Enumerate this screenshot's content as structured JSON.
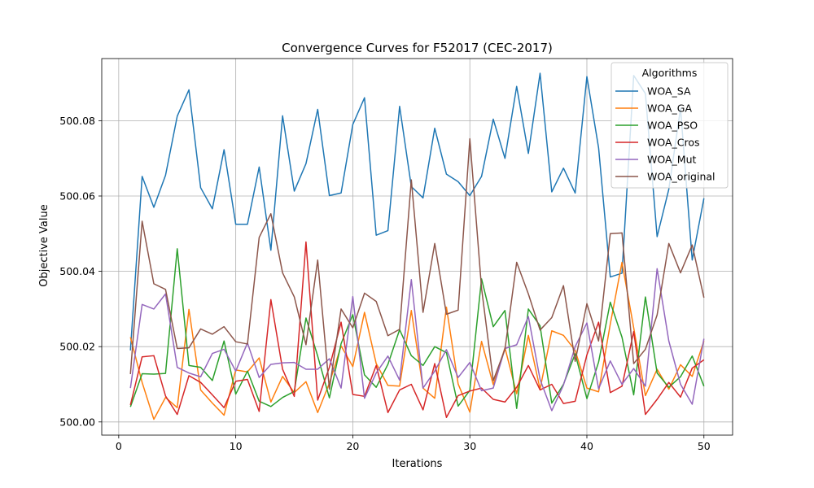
{
  "chart_data": {
    "type": "line",
    "title": "Convergence Curves for F52017 (CEC-2017)",
    "xlabel": "Iterations",
    "ylabel": "Objective Value",
    "xlim": [
      -1.45,
      52.45
    ],
    "ylim": [
      499.9965,
      500.0965
    ],
    "xticks": [
      0,
      10,
      20,
      30,
      40,
      50
    ],
    "yticks": [
      500.0,
      500.02,
      500.04,
      500.06,
      500.08
    ],
    "ytick_labels": [
      "500.00",
      "500.02",
      "500.04",
      "500.06",
      "500.08"
    ],
    "grid": true,
    "legend": {
      "title": "Algorithms",
      "position": "top-right"
    },
    "x": [
      1,
      2,
      3,
      4,
      5,
      6,
      7,
      8,
      9,
      10,
      11,
      12,
      13,
      14,
      15,
      16,
      17,
      18,
      19,
      20,
      21,
      22,
      23,
      24,
      25,
      26,
      27,
      28,
      29,
      30,
      31,
      32,
      33,
      34,
      35,
      36,
      37,
      38,
      39,
      40,
      41,
      42,
      43,
      44,
      45,
      46,
      47,
      48,
      49,
      50
    ],
    "series": [
      {
        "name": "WOA_SA",
        "color": "#1f77b4",
        "values": [
          500.019,
          500.0652,
          500.057,
          500.0655,
          500.0812,
          500.0882,
          500.0622,
          500.0566,
          500.0723,
          500.0525,
          500.0525,
          500.0677,
          500.0456,
          500.0813,
          500.0613,
          500.0686,
          500.083,
          500.0601,
          500.0608,
          500.079,
          500.0861,
          500.0496,
          500.0508,
          500.0838,
          500.0625,
          500.0595,
          500.078,
          500.0658,
          500.0638,
          500.0601,
          500.0652,
          500.0804,
          500.07,
          500.0891,
          500.0713,
          500.0926,
          500.0611,
          500.0674,
          500.0608,
          500.0917,
          500.0728,
          500.0385,
          500.0395,
          500.092,
          500.0872,
          500.0492,
          500.0618,
          500.0833,
          500.043,
          500.0594
        ]
      },
      {
        "name": "WOA_GA",
        "color": "#ff7f0e",
        "values": [
          500.0225,
          500.0105,
          500.0007,
          500.0065,
          500.0038,
          500.0299,
          500.0085,
          500.005,
          500.0018,
          500.0138,
          500.0133,
          500.017,
          500.0053,
          500.0121,
          500.0078,
          500.0107,
          500.0025,
          500.0103,
          500.0202,
          500.0147,
          500.0291,
          500.0155,
          500.0097,
          500.0095,
          500.0296,
          500.009,
          500.0063,
          500.0305,
          500.0101,
          500.0026,
          500.0214,
          500.0099,
          500.0197,
          500.0075,
          500.023,
          500.0087,
          500.0242,
          500.023,
          500.019,
          500.009,
          500.008,
          500.026,
          500.0424,
          500.025,
          500.007,
          500.014,
          500.0087,
          500.0152,
          500.0121,
          500.0215
        ]
      },
      {
        "name": "WOA_PSO",
        "color": "#2ca02c",
        "values": [
          500.004,
          500.0128,
          500.0127,
          500.0129,
          500.046,
          500.015,
          500.0145,
          500.011,
          500.0215,
          500.0074,
          500.0135,
          500.0055,
          500.0041,
          500.0065,
          500.0081,
          500.0276,
          500.0175,
          500.0064,
          500.0208,
          500.0285,
          500.0125,
          500.0092,
          500.0153,
          500.0245,
          500.0176,
          500.015,
          500.02,
          500.0184,
          500.0042,
          500.0084,
          500.038,
          500.0253,
          500.0296,
          500.0036,
          500.03,
          500.0255,
          500.005,
          500.01,
          500.0181,
          500.0062,
          500.0159,
          500.0318,
          500.0225,
          500.0072,
          500.0332,
          500.013,
          500.0092,
          500.012,
          500.0175,
          500.0095
        ]
      },
      {
        "name": "WOA_Cros",
        "color": "#d62728",
        "values": [
          500.0045,
          500.0173,
          500.0176,
          500.0069,
          500.002,
          500.0123,
          500.0105,
          500.0072,
          500.0038,
          500.0108,
          500.0113,
          500.0028,
          500.0325,
          500.014,
          500.0068,
          500.0478,
          500.0058,
          500.0145,
          500.0265,
          500.0073,
          500.0068,
          500.015,
          500.0025,
          500.0085,
          500.01,
          500.0032,
          500.0155,
          500.0012,
          500.007,
          500.0082,
          500.009,
          500.006,
          500.0053,
          500.0092,
          500.015,
          500.0085,
          500.01,
          500.0049,
          500.0055,
          500.0178,
          500.0265,
          500.0078,
          500.0095,
          500.024,
          500.002,
          500.006,
          500.0105,
          500.0066,
          500.0143,
          500.0165
        ]
      },
      {
        "name": "WOA_Mut",
        "color": "#9467bd",
        "values": [
          500.009,
          500.0312,
          500.03,
          500.034,
          500.0145,
          500.013,
          500.012,
          500.0182,
          500.0193,
          500.0135,
          500.021,
          500.0118,
          500.0153,
          500.0157,
          500.0158,
          500.014,
          500.014,
          500.0168,
          500.009,
          500.0333,
          500.0063,
          500.013,
          500.0175,
          500.0111,
          500.0378,
          500.009,
          500.0135,
          500.0192,
          500.0118,
          500.0158,
          500.0083,
          500.009,
          500.0195,
          500.0205,
          500.028,
          500.0113,
          500.003,
          500.0098,
          500.02,
          500.0263,
          500.0088,
          500.0162,
          500.01,
          500.0142,
          500.0095,
          500.0407,
          500.0215,
          500.01,
          500.0047,
          500.0221
        ]
      },
      {
        "name": "WOA_original",
        "color": "#8c564b",
        "values": [
          500.0127,
          500.0533,
          500.0367,
          500.0352,
          500.0195,
          500.0197,
          500.0247,
          500.0233,
          500.0253,
          500.0213,
          500.0207,
          500.049,
          500.0553,
          500.0396,
          500.0332,
          500.0205,
          500.043,
          500.0087,
          500.03,
          500.025,
          500.0342,
          500.032,
          500.0229,
          500.0246,
          500.0643,
          500.0291,
          500.0474,
          500.0286,
          500.0297,
          500.0752,
          500.0355,
          500.011,
          500.0193,
          500.0424,
          500.034,
          500.0244,
          500.0277,
          500.0362,
          500.0161,
          500.0314,
          500.0215,
          500.05,
          500.0502,
          500.0155,
          500.0193,
          500.0284,
          500.0474,
          500.0396,
          500.047,
          500.033
        ]
      }
    ]
  }
}
